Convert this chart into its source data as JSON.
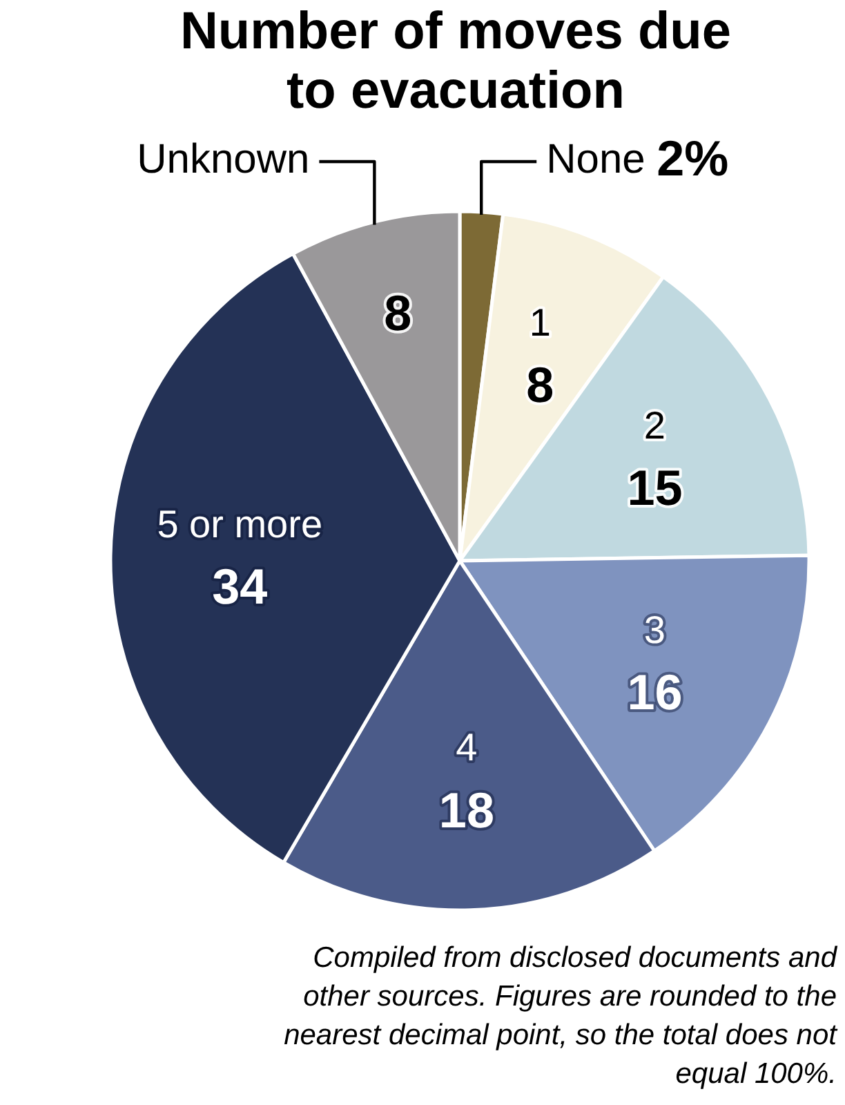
{
  "chart_data": {
    "type": "pie",
    "title": "Number of moves due to evacuation",
    "categories": [
      "None",
      "1",
      "2",
      "3",
      "4",
      "5 or more",
      "Unknown"
    ],
    "values": [
      2,
      8,
      15,
      16,
      18,
      34,
      8
    ],
    "colors": [
      "#7d6a35",
      "#f7f2df",
      "#c0d9e0",
      "#7f93bf",
      "#4b5b89",
      "#243256",
      "#9a989a"
    ],
    "value_labels": [
      "2%",
      "8",
      "15",
      "16",
      "18",
      "34",
      "8"
    ],
    "annotations": [
      "Compiled from disclosed documents and other sources. Figures are rounded to the nearest decimal point, so the total does not equal 100%."
    ]
  }
}
